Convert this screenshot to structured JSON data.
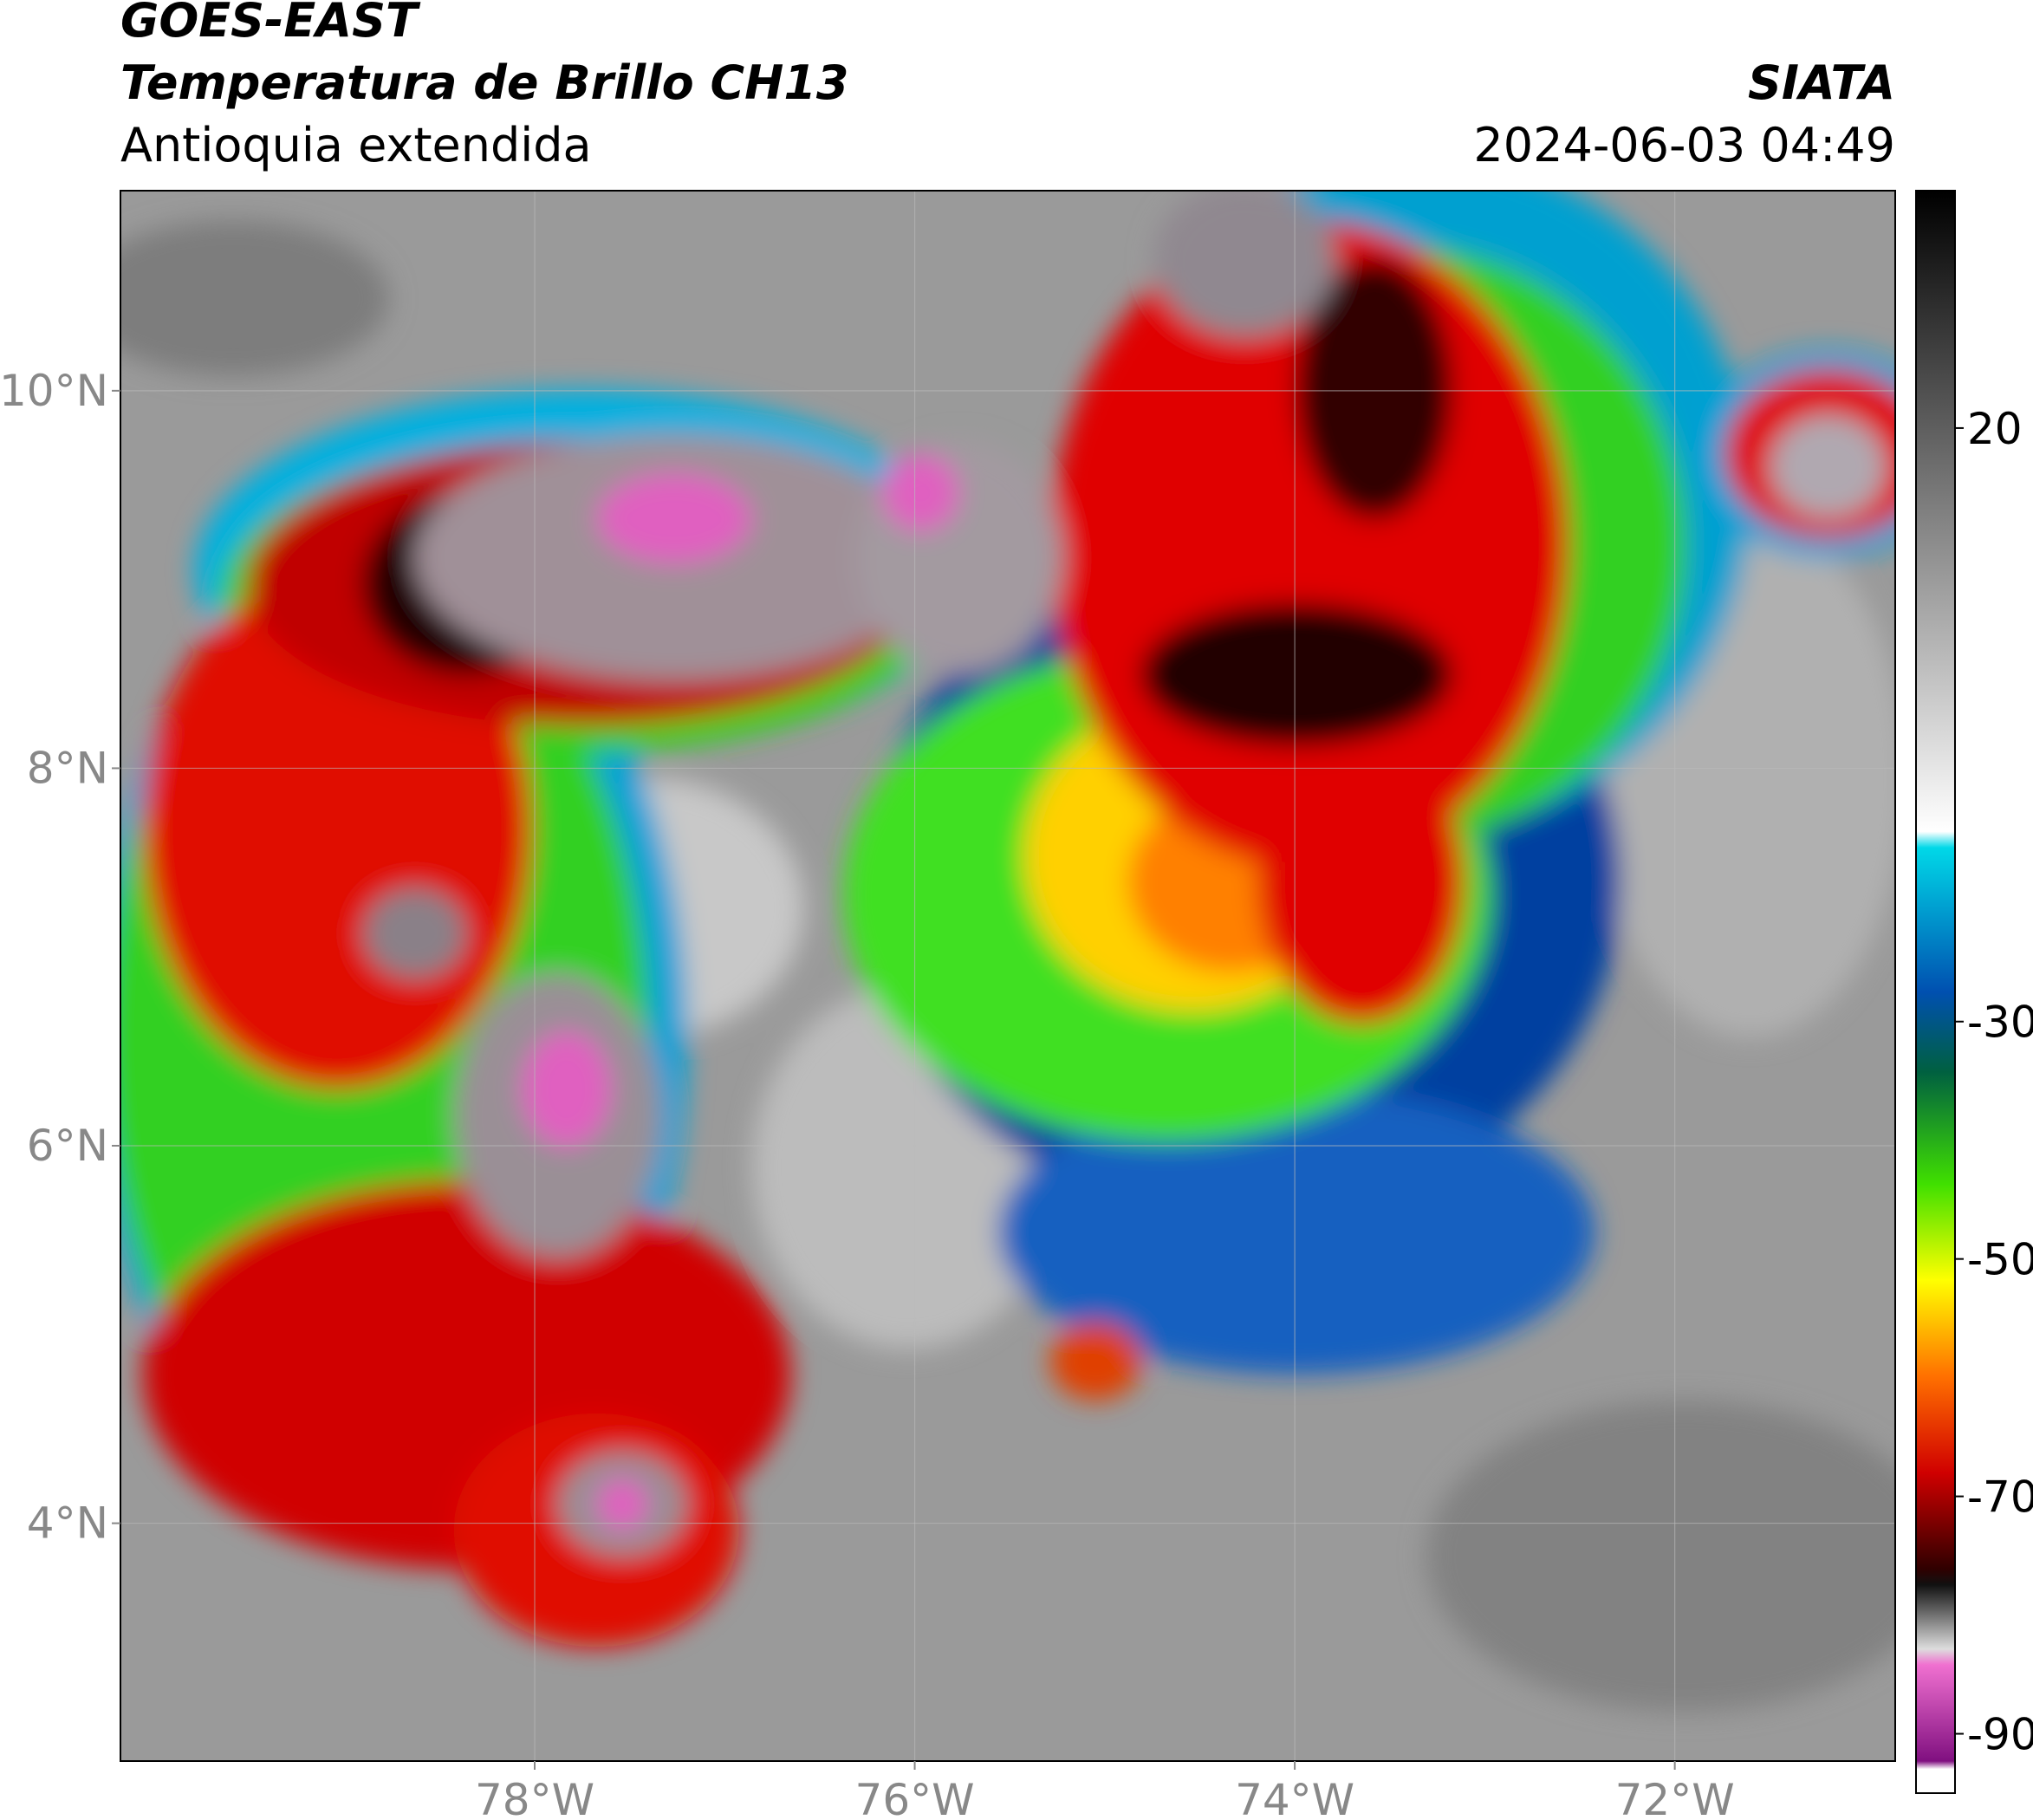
{
  "header": {
    "satellite": "GOES-EAST",
    "product": "Temperatura de Brillo CH13",
    "region": "Antioquia extendida",
    "agency": "SIATA",
    "datetime": "2024-06-03 04:49"
  },
  "map": {
    "xlim": [
      -80.18,
      -70.84
    ],
    "ylim": [
      2.74,
      11.06
    ],
    "xticks": [
      {
        "value": -78,
        "label": "78°W"
      },
      {
        "value": -76,
        "label": "76°W"
      },
      {
        "value": -74,
        "label": "74°W"
      },
      {
        "value": -72,
        "label": "72°W"
      }
    ],
    "yticks": [
      {
        "value": 10,
        "label": "10°N"
      },
      {
        "value": 8,
        "label": "8°N"
      },
      {
        "value": 6,
        "label": "6°N"
      },
      {
        "value": 4,
        "label": "4°N"
      }
    ],
    "grid": true
  },
  "colorbar": {
    "lim": [
      -95,
      40
    ],
    "ticks": [
      20,
      -30,
      -50,
      -70,
      -90
    ]
  }
}
